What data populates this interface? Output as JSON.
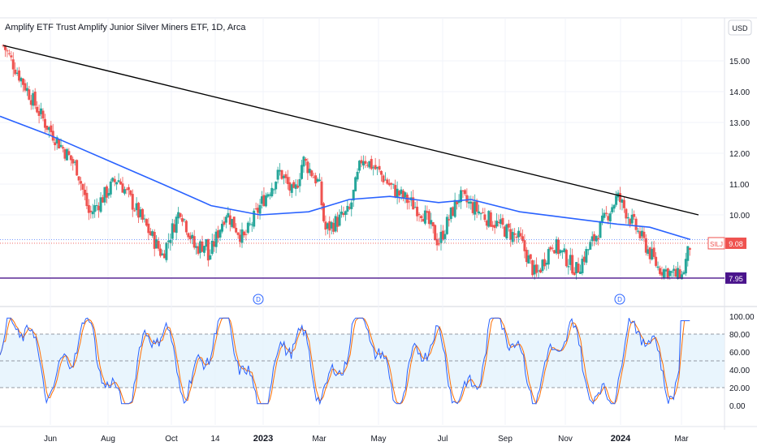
{
  "title": "Amplify ETF Trust Amplify Junior Silver Miners ETF, 1D, Arca",
  "currency_button": "USD",
  "price_badge": {
    "symbol": "SILJ",
    "value": "9.08"
  },
  "level_badge": "7.95",
  "colors": {
    "up": "#26a69a",
    "down": "#ef5350",
    "ma": "#2962ff",
    "trend": "#000000",
    "support": "#4a148c",
    "stoch_k": "#2962ff",
    "stoch_d": "#ff6d00",
    "band_fill": "#e3f2fd",
    "badge_symbol": "#ef5350",
    "badge_level": "#4a148c"
  },
  "chart_data": [
    {
      "type": "candlestick",
      "title": "Amplify ETF Trust Amplify Junior Silver Miners ETF, 1D, Arca",
      "y_ticks": [
        10,
        11,
        12,
        13,
        14,
        15
      ],
      "y_tick_labels": [
        "10.00",
        "11.00",
        "12.00",
        "13.00",
        "14.00",
        "15.00"
      ],
      "ylim": [
        7.95,
        15.5
      ],
      "x_ticks": [
        "Jun",
        "Aug",
        "Oct",
        "14",
        "2023",
        "Mar",
        "May",
        "Jul",
        "Sep",
        "Nov",
        "2024",
        "Mar"
      ],
      "markers": [
        "D",
        "D"
      ],
      "series": [
        {
          "name": "Close path",
          "values": [
            15.5,
            13.0,
            11.5,
            10.0,
            11.2,
            8.7,
            10.2,
            8.9,
            9.1,
            8.1,
            10.1,
            9.2,
            10.5,
            11.4,
            10.6,
            11.8,
            11.0,
            9.5,
            10.1,
            11.9,
            11.4,
            10.8,
            10.1,
            9.1,
            10.6,
            9.9,
            9.2,
            8.0,
            9.1,
            8.2,
            10.6,
            9.7,
            8.3,
            7.95,
            9.08
          ],
          "x_positions": [
            "May 2022",
            "Jun 2022",
            "Jul 2022",
            "Jul 2022",
            "Aug 2022",
            "Sep 2022",
            "Oct 2022",
            "Nov 2022",
            "Dec 2022",
            "Nov 2022",
            "Dec 2022",
            "Dec 2022",
            "Jan 2023",
            "Jan 2023",
            "Feb 2023",
            "Feb 2023",
            "Mar 2023",
            "Mar 2023",
            "Apr 2023",
            "Apr 2023",
            "May 2023",
            "May 2023",
            "Jun 2023",
            "Jun 2023",
            "Jul 2023",
            "Aug 2023",
            "Sep 2023",
            "Oct 2023",
            "Oct 2023",
            "Nov 2023",
            "Dec 2023",
            "Jan 2024",
            "Feb 2024",
            "Mar 2024",
            "Mar 2024"
          ]
        },
        {
          "name": "Moving average",
          "values": [
            13.2,
            12.6,
            11.8,
            11.0,
            10.3,
            10.0,
            10.1,
            10.5,
            10.6,
            10.4,
            10.5,
            10.1,
            9.9,
            9.7,
            9.6,
            9.2
          ]
        }
      ],
      "trendline": {
        "from": 15.5,
        "to": 10.0
      },
      "support_level": 7.95
    },
    {
      "type": "line",
      "name": "Stochastic",
      "y_ticks": [
        0,
        20,
        40,
        60,
        80,
        100
      ],
      "y_tick_labels": [
        "0.00",
        "20.00",
        "40.00",
        "60.00",
        "80.00",
        "100.00"
      ],
      "ylim": [
        -5,
        105
      ],
      "band": [
        20,
        80
      ]
    }
  ]
}
